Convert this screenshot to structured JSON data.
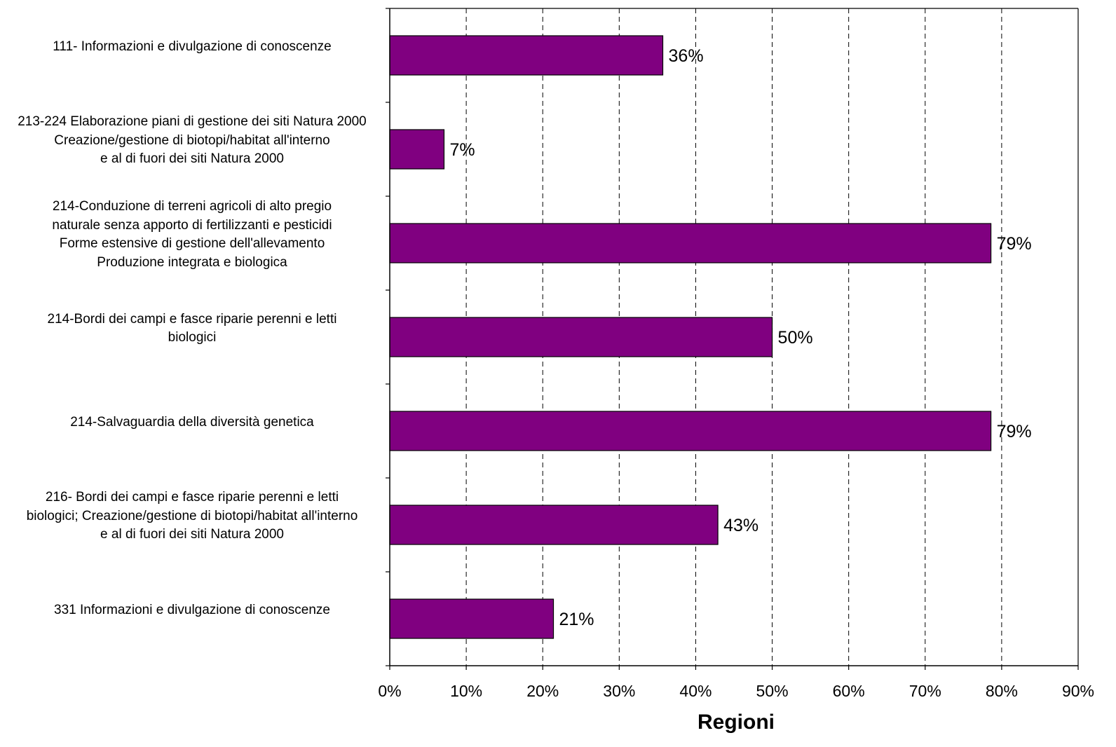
{
  "chart_data": {
    "type": "bar",
    "orientation": "horizontal",
    "categories": [
      "111- Informazioni e divulgazione di conoscenze",
      "213-224 Elaborazione piani di gestione dei siti Natura 2000\nCreazione/gestione di biotopi/habitat all'interno\ne al di fuori dei siti Natura 2000",
      "214-Conduzione di terreni agricoli di alto pregio\nnaturale senza apporto di fertilizzanti e pesticidi\nForme estensive di gestione dell'allevamento\nProduzione integrata e biologica",
      "214-Bordi dei campi e fasce riparie perenni e letti\nbiologici",
      "214-Salvaguardia della diversità genetica",
      "216- Bordi dei campi e fasce riparie perenni e letti\nbiologici; Creazione/gestione di biotopi/habitat all'interno\ne al di fuori dei siti Natura 2000",
      "331 Informazioni e divulgazione di conoscenze"
    ],
    "values": [
      35.7,
      7.1,
      78.6,
      50.0,
      78.6,
      42.9,
      21.4
    ],
    "value_labels": [
      "36%",
      "7%",
      "79%",
      "50%",
      "79%",
      "43%",
      "21%"
    ],
    "xlabel": "Regioni",
    "xlim": [
      0,
      90
    ],
    "xticks": [
      0,
      10,
      20,
      30,
      40,
      50,
      60,
      70,
      80,
      90
    ],
    "xtick_labels": [
      "0%",
      "10%",
      "20%",
      "30%",
      "40%",
      "50%",
      "60%",
      "70%",
      "80%",
      "90%"
    ],
    "grid": "vertical-dashed",
    "bar_color": "#800080",
    "bar_edge_color": "#000000"
  }
}
